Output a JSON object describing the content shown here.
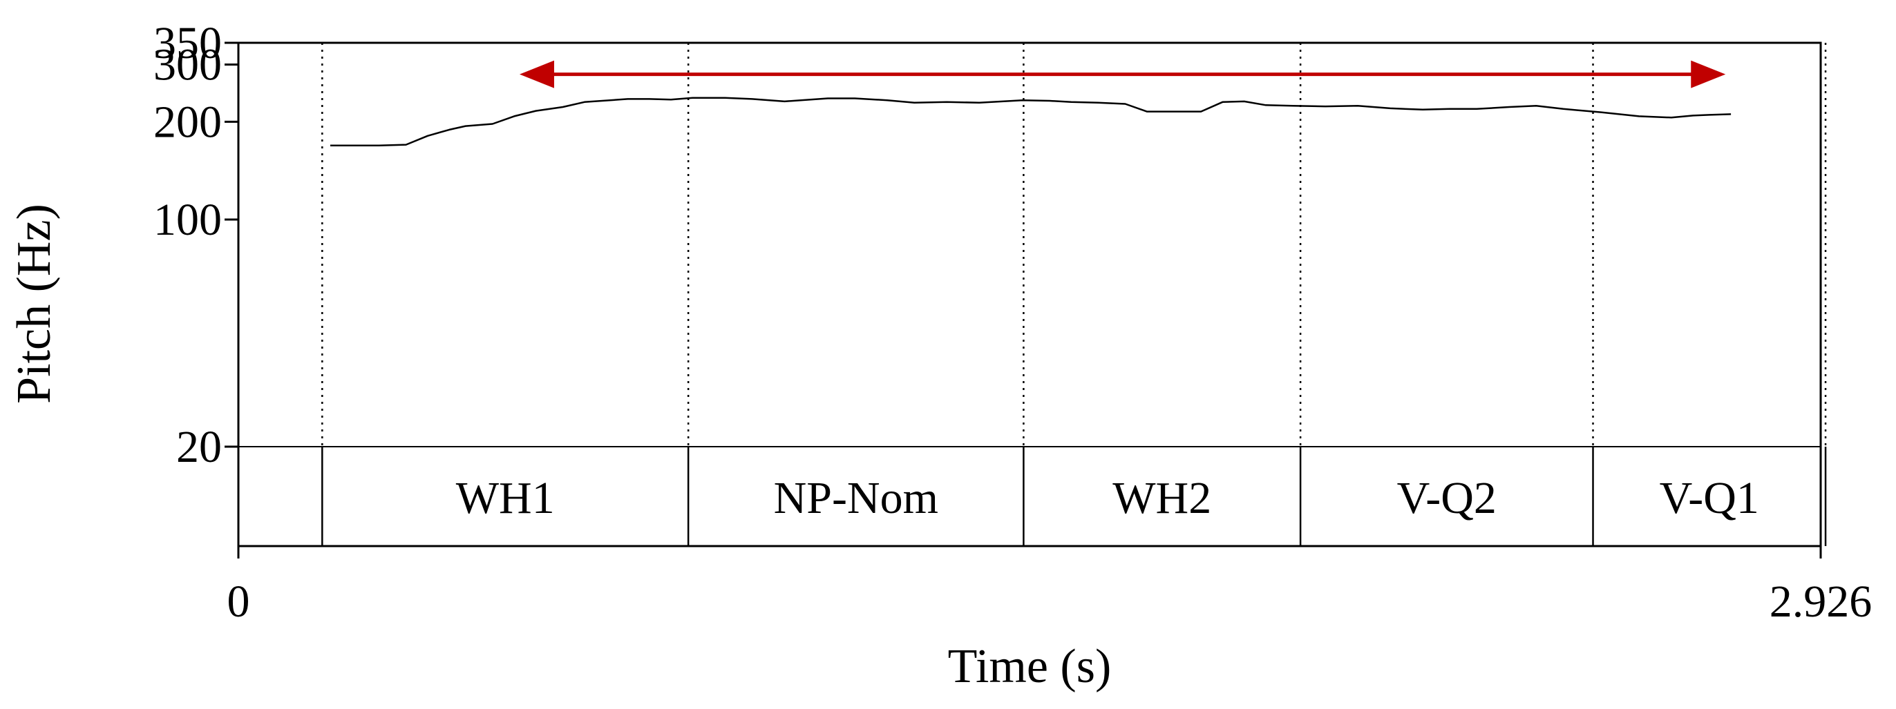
{
  "chart_data": {
    "type": "line",
    "title": "",
    "xlabel": "Time (s)",
    "ylabel": "Pitch (Hz)",
    "xlim": [
      0,
      2.926
    ],
    "ylim": [
      20,
      350
    ],
    "y_scale": "log",
    "x_tick_labels": [
      "0",
      "2.926"
    ],
    "y_tick_labels": [
      "350",
      "300",
      "200",
      "100",
      "20"
    ],
    "y_ticks": [
      350,
      300,
      200,
      100,
      20
    ],
    "grid": false,
    "series": [
      {
        "color": "#000000",
        "x": [
          0.17,
          0.26,
          0.31,
          0.35,
          0.39,
          0.42,
          0.47,
          0.51,
          0.55,
          0.6,
          0.64,
          0.72,
          0.76,
          0.8,
          0.84,
          0.9,
          0.95,
          1.01,
          1.09,
          1.14,
          1.2,
          1.25,
          1.31,
          1.37,
          1.45,
          1.5,
          1.54,
          1.59,
          1.64,
          1.68,
          1.73,
          1.78,
          1.82,
          1.86,
          1.9,
          1.95,
          2.01,
          2.07,
          2.13,
          2.19,
          2.24,
          2.29,
          2.35,
          2.4,
          2.45,
          2.52,
          2.59,
          2.65,
          2.69,
          2.72,
          2.76
        ],
        "y": [
          169,
          169,
          170,
          181,
          189,
          194,
          197,
          208,
          216,
          222,
          230,
          235,
          235,
          234,
          237,
          237,
          235,
          231,
          236,
          236,
          233,
          229,
          230,
          229,
          233,
          232,
          230,
          229,
          227,
          215,
          215,
          215,
          230,
          231,
          225,
          224,
          223,
          224,
          220,
          218,
          219,
          219,
          222,
          224,
          219,
          214,
          208,
          206,
          209,
          210,
          211
        ]
      }
    ],
    "tiers": [
      {
        "label": "WH1",
        "start": 0.155,
        "end": 0.832
      },
      {
        "label": "NP-Nom",
        "start": 0.832,
        "end": 1.452
      },
      {
        "label": "WH2",
        "start": 1.452,
        "end": 1.964
      },
      {
        "label": "V-Q2",
        "start": 1.964,
        "end": 2.505
      },
      {
        "label": "V-Q1",
        "start": 2.505,
        "end": 2.935
      }
    ],
    "annotations": [
      {
        "type": "double-arrow",
        "color": "#c00000",
        "x_start": 0.52,
        "x_end": 2.75,
        "y": 280
      }
    ]
  }
}
